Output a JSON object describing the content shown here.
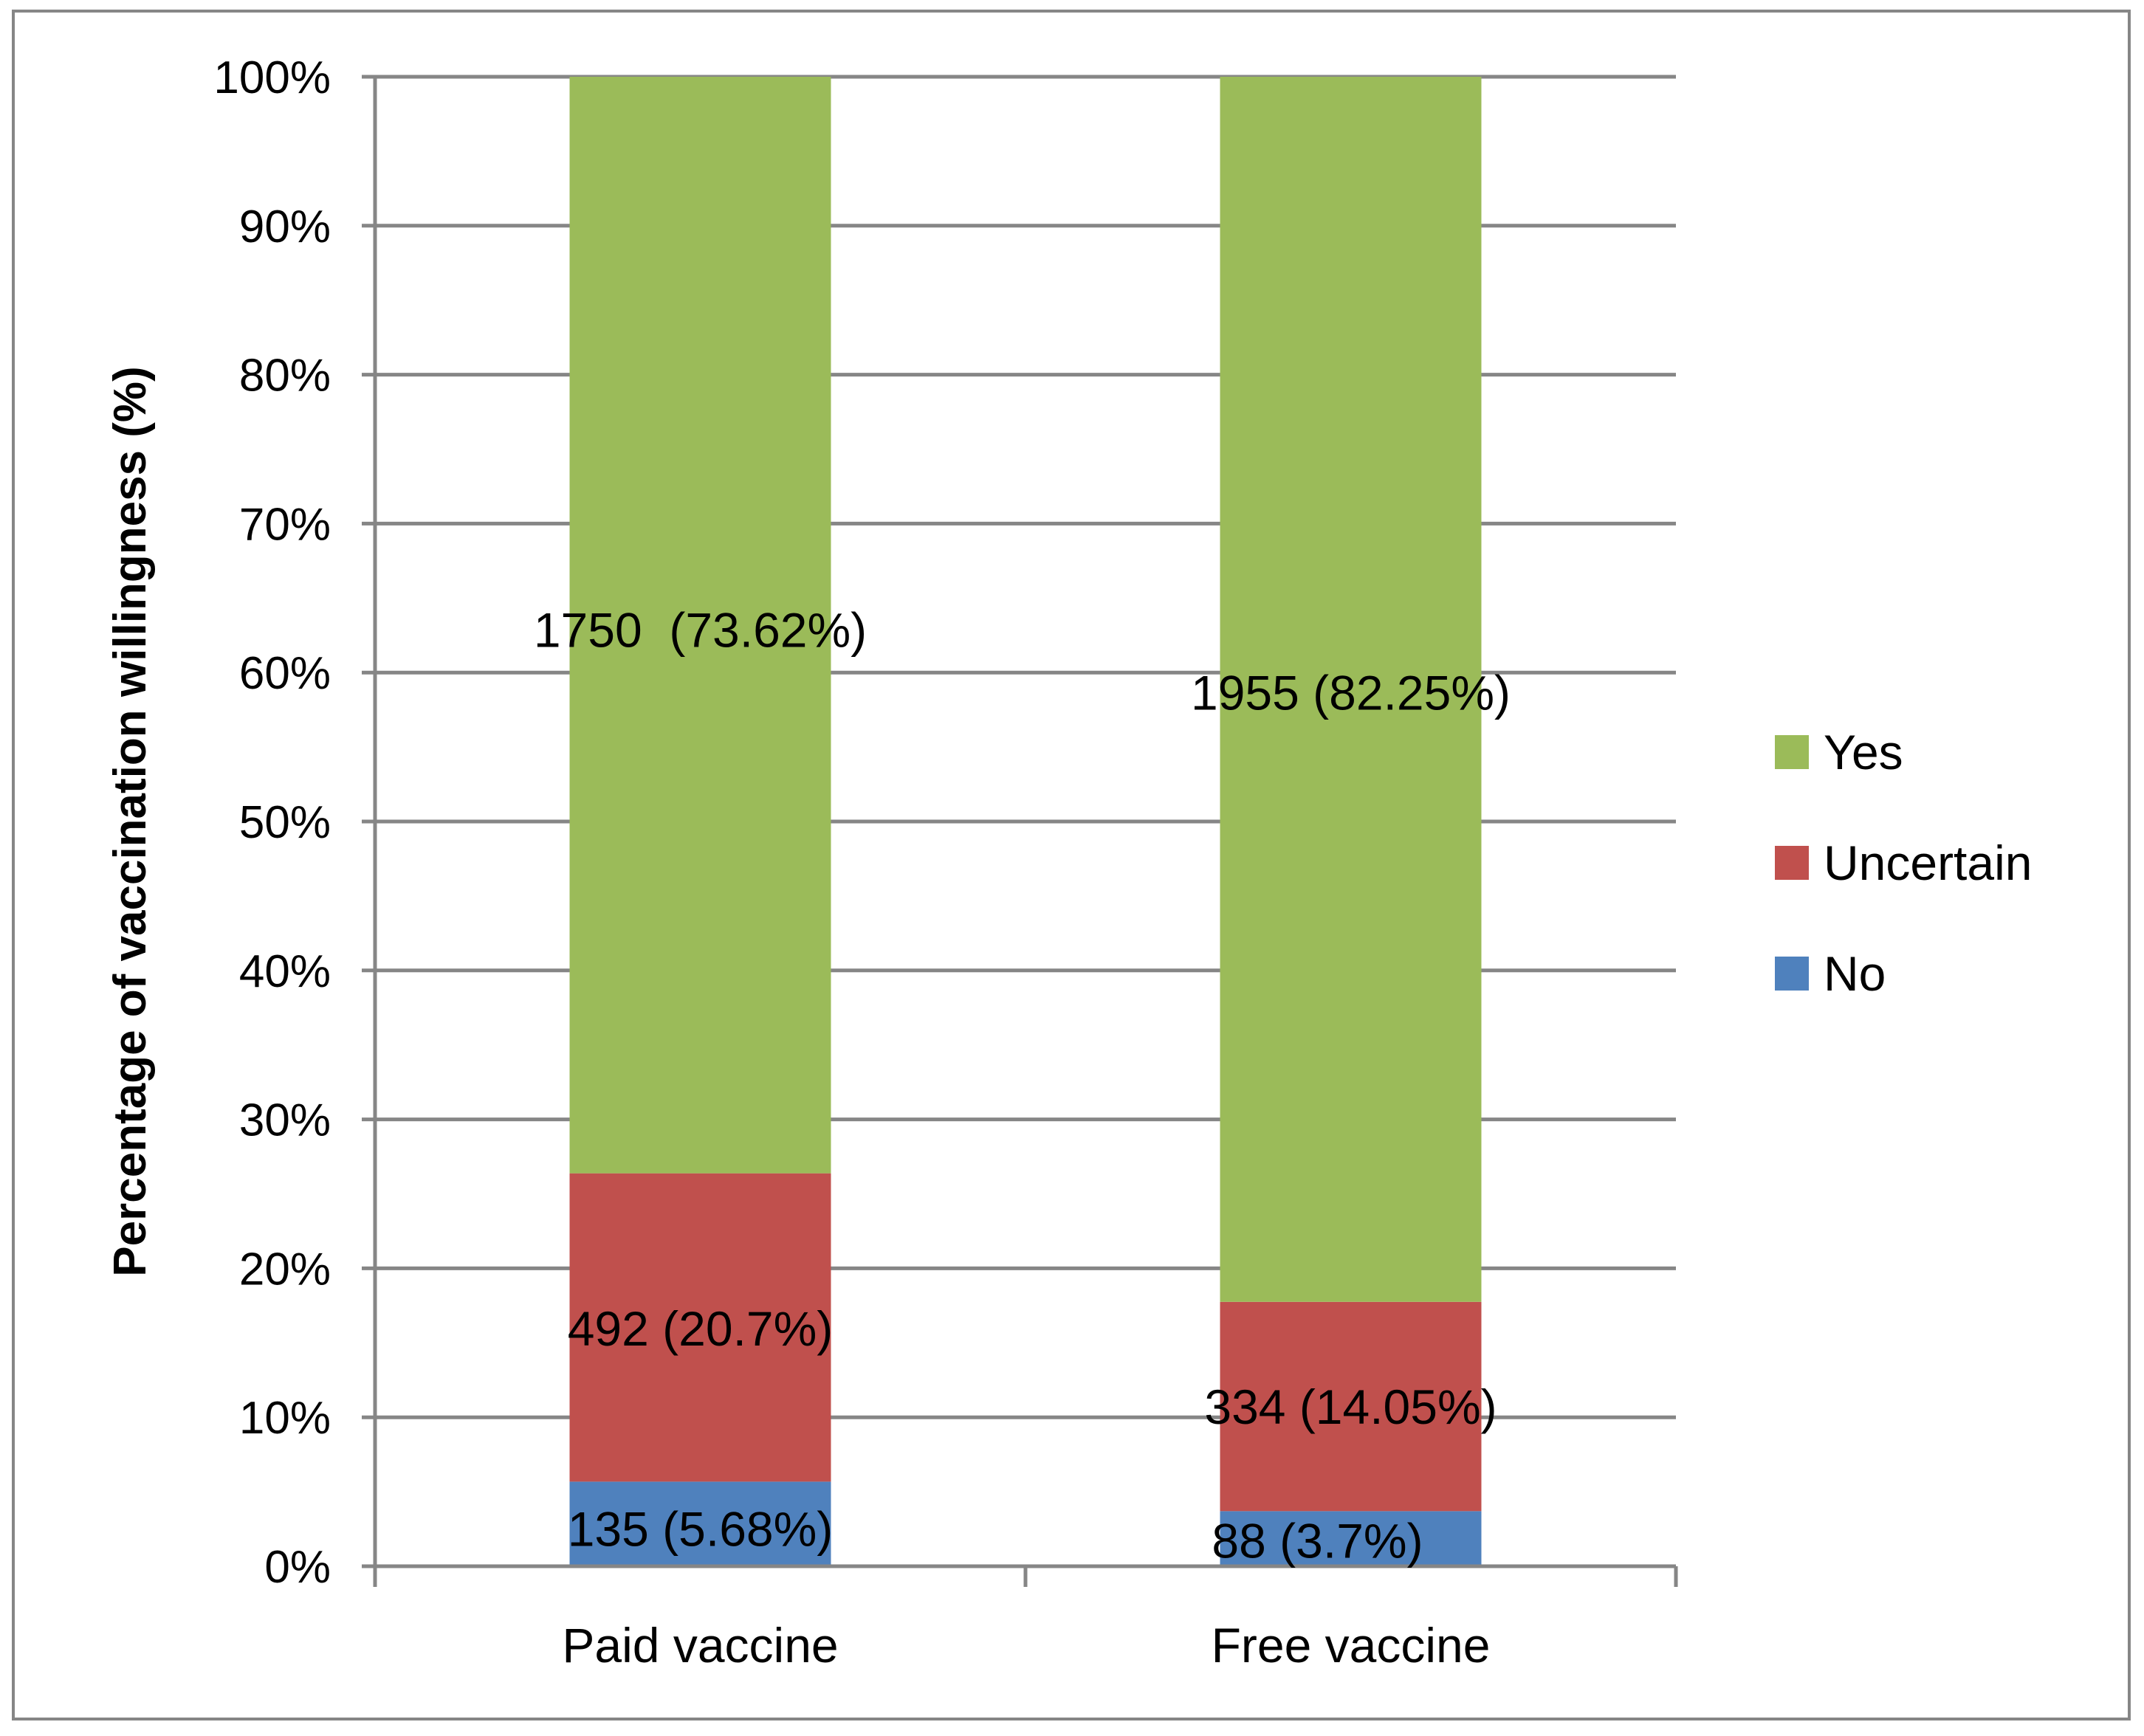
{
  "chart_data": {
    "type": "bar",
    "stacked": true,
    "title": "",
    "xlabel": "",
    "ylabel": "Percentage of vaccination willingness (%)",
    "ylim": [
      0,
      100
    ],
    "yticks": [
      0,
      10,
      20,
      30,
      40,
      50,
      60,
      70,
      80,
      90,
      100
    ],
    "ytick_labels": [
      "0%",
      "10%",
      "20%",
      "30%",
      "40%",
      "50%",
      "60%",
      "70%",
      "80%",
      "90%",
      "100%"
    ],
    "grid": true,
    "legend_position": "right",
    "categories": [
      "Paid vaccine",
      "Free vaccine"
    ],
    "series": [
      {
        "name": "No",
        "color": "#4F81BD",
        "values": [
          5.68,
          3.7
        ],
        "labels": [
          "135 (5.68%)",
          "88 (3.7%)"
        ]
      },
      {
        "name": "Uncertain",
        "color": "#C0504D",
        "values": [
          20.7,
          14.05
        ],
        "labels": [
          "492 (20.7%)",
          "334 (14.05%)"
        ]
      },
      {
        "name": "Yes",
        "color": "#9BBB59",
        "values": [
          73.62,
          82.25
        ],
        "labels": [
          "1750  (73.62%)",
          "1955 (82.25%)"
        ]
      }
    ],
    "legend_order": [
      "Yes",
      "Uncertain",
      "No"
    ],
    "colors": {
      "grid": "#868686",
      "axis": "#868686",
      "border": "#868686"
    }
  }
}
